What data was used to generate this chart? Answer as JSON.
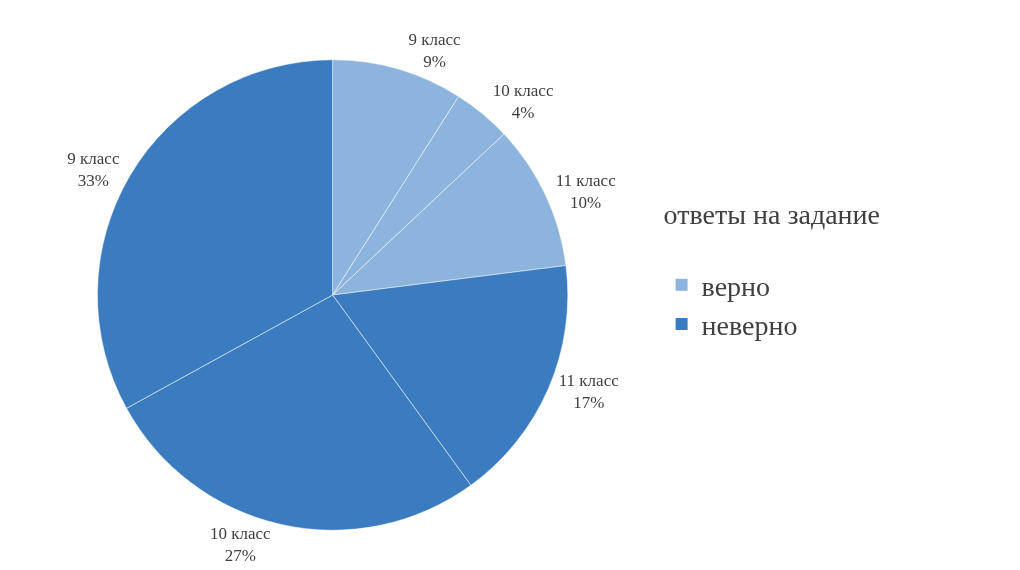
{
  "chart_data": {
    "type": "pie",
    "categories": [
      "9 класс",
      "10 класс",
      "11 класс",
      "11 класс",
      "10 класс",
      "9 класс"
    ],
    "values": [
      9,
      4,
      10,
      17,
      27,
      33
    ],
    "value_labels": [
      "9%",
      "4%",
      "10%",
      "17%",
      "27%",
      "33%"
    ],
    "colors": [
      "#8db4dc",
      "#8db4dc",
      "#8db4dc",
      "#3b7cc0",
      "#3b7cc0",
      "#3b7cc0"
    ],
    "annotations": [
      "ответы на задание",
      "верно",
      "неверно"
    ]
  }
}
